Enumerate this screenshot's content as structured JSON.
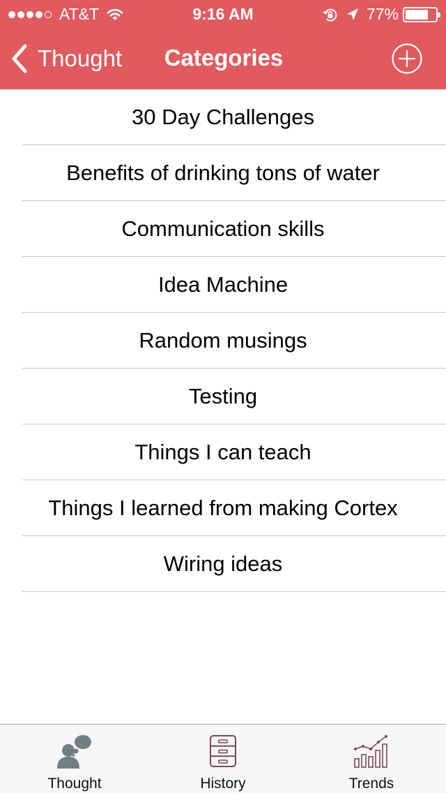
{
  "status_bar": {
    "carrier": "AT&T",
    "time": "9:16 AM",
    "battery_percent": "77%",
    "battery_level": 0.77,
    "signal_bars_filled": 4,
    "signal_bars_total": 5
  },
  "nav": {
    "back_label": "Thought",
    "title": "Categories",
    "add_icon": "plus-circle-icon"
  },
  "categories": [
    "30 Day Challenges",
    "Benefits of drinking tons of water",
    "Communication skills",
    "Idea Machine",
    "Random musings",
    "Testing",
    "Things I can teach",
    "Things I learned from making Cortex",
    "Wiring ideas"
  ],
  "tabbar": {
    "tabs": [
      {
        "label": "Thought",
        "icon": "thought-bubble-icon"
      },
      {
        "label": "History",
        "icon": "file-cabinet-icon"
      },
      {
        "label": "Trends",
        "icon": "trend-chart-icon"
      }
    ]
  },
  "colors": {
    "header": "#e05a5e",
    "separator": "#c8c7cc",
    "tabbar": "#f7f7f7",
    "thought_icon": "#6f7f86",
    "history_icon": "#7a4658"
  }
}
